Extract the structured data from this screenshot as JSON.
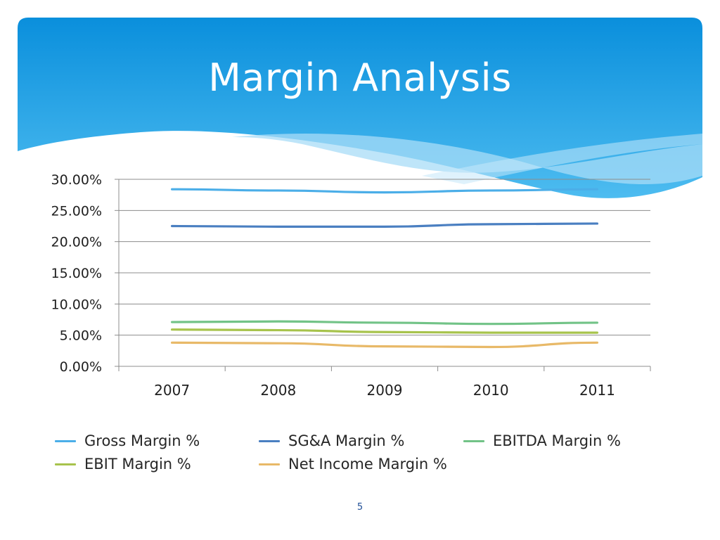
{
  "slide": {
    "title": "Margin Analysis",
    "page_number": "5",
    "colors": {
      "banner_top": "#0a8fdc",
      "banner_bottom": "#4dbcf0",
      "wave": "#a8dcf7"
    }
  },
  "chart_data": {
    "type": "line",
    "title": "",
    "xlabel": "",
    "ylabel": "",
    "categories": [
      "2007",
      "2008",
      "2009",
      "2010",
      "2011"
    ],
    "ylim": [
      0,
      0.3
    ],
    "ytick_values": [
      0,
      0.05,
      0.1,
      0.15,
      0.2,
      0.25,
      0.3
    ],
    "ytick_labels": [
      "0.00%",
      "5.00%",
      "10.00%",
      "15.00%",
      "20.00%",
      "25.00%",
      "30.00%"
    ],
    "grid": true,
    "legend_position": "bottom",
    "series": [
      {
        "name": "Gross Margin %",
        "color": "#4baee8",
        "values": [
          0.284,
          0.282,
          0.279,
          0.282,
          0.284
        ]
      },
      {
        "name": "SG&A Margin %",
        "color": "#4a7fc1",
        "values": [
          0.225,
          0.224,
          0.224,
          0.228,
          0.229
        ]
      },
      {
        "name": "EBITDA Margin %",
        "color": "#72c387",
        "values": [
          0.071,
          0.072,
          0.07,
          0.068,
          0.07
        ]
      },
      {
        "name": "EBIT Margin %",
        "color": "#a7c34c",
        "values": [
          0.059,
          0.058,
          0.055,
          0.054,
          0.054
        ]
      },
      {
        "name": "Net Income Margin %",
        "color": "#e8b968",
        "values": [
          0.038,
          0.037,
          0.032,
          0.031,
          0.038
        ]
      }
    ]
  }
}
